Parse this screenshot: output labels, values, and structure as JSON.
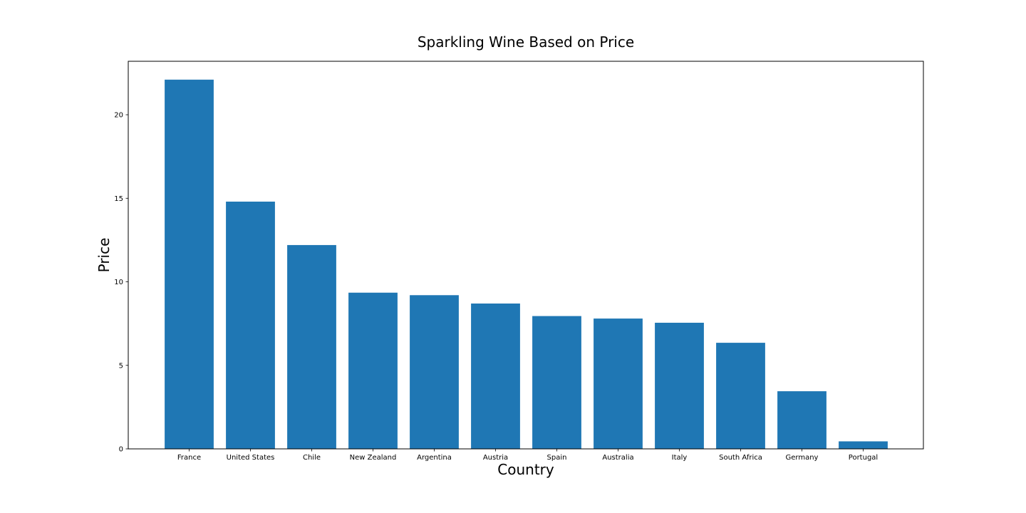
{
  "chart_data": {
    "type": "bar",
    "title": "Sparkling Wine Based on Price",
    "xlabel": "Country",
    "ylabel": "Price",
    "categories": [
      "France",
      "United States",
      "Chile",
      "New Zealand",
      "Argentina",
      "Austria",
      "Spain",
      "Australia",
      "Italy",
      "South Africa",
      "Germany",
      "Portugal"
    ],
    "values": [
      22.1,
      14.8,
      12.2,
      9.35,
      9.2,
      8.7,
      7.95,
      7.8,
      7.55,
      6.35,
      3.45,
      0.45
    ],
    "ylim": [
      0,
      23.2
    ],
    "yticks": [
      0,
      5,
      10,
      15,
      20
    ],
    "bar_color": "#1f77b4",
    "grid": false,
    "legend": "none"
  }
}
